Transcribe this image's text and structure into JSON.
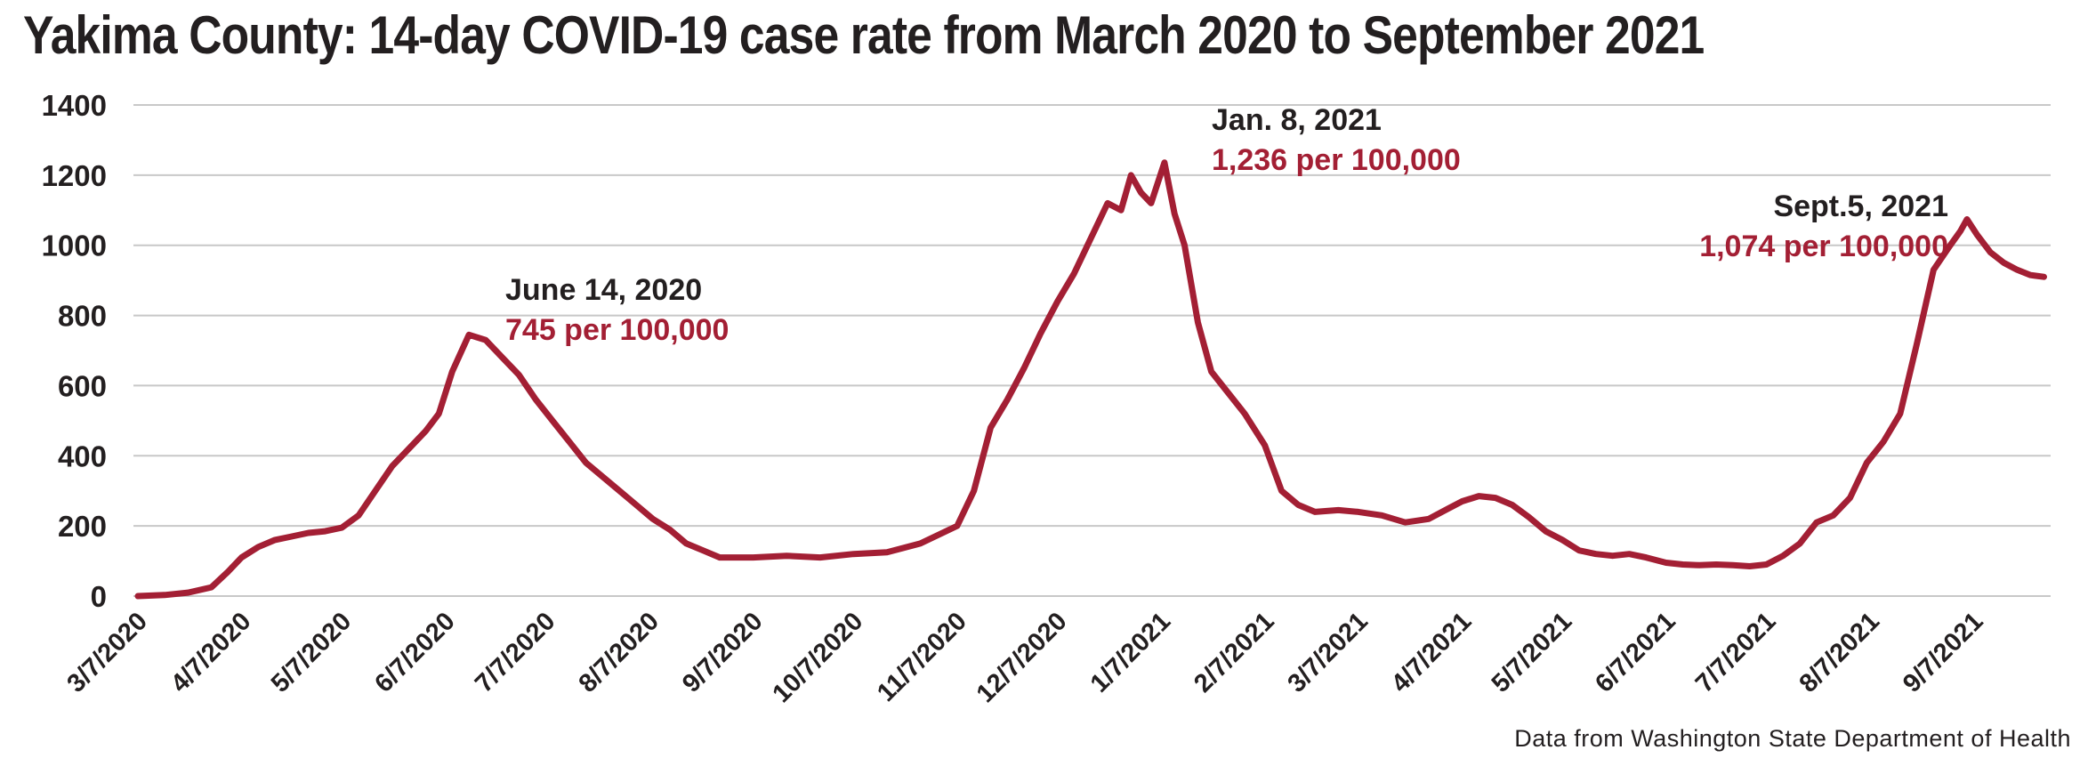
{
  "title": "Yakima County: 14-day COVID-19 case rate from March 2020 to September 2021",
  "source": "Data from Washington State Department of Health",
  "colors": {
    "line": "#a31f34",
    "text": "#231f20",
    "annotation_value": "#a31f34",
    "grid": "#c8c8c8"
  },
  "chart_data": {
    "type": "line",
    "title": "Yakima County: 14-day COVID-19 case rate from March 2020 to September 2021",
    "xlabel": "",
    "ylabel": "",
    "ylim": [
      0,
      1400
    ],
    "yticks": [
      0,
      200,
      400,
      600,
      800,
      1000,
      1200,
      1400
    ],
    "xlim": [
      "2020-03-07",
      "2021-09-30"
    ],
    "xtick_labels": [
      "3/7/2020",
      "4/7/2020",
      "5/7/2020",
      "6/7/2020",
      "7/7/2020",
      "8/7/2020",
      "9/7/2020",
      "10/7/2020",
      "11/7/2020",
      "12/7/2020",
      "1/7/2021",
      "2/7/2021",
      "3/7/2021",
      "4/7/2021",
      "5/7/2021",
      "6/7/2021",
      "7/7/2021",
      "8/7/2021",
      "9/7/2021"
    ],
    "grid": "horizontal",
    "series": [
      {
        "x": [
          "2020-03-07",
          "2020-03-15",
          "2020-03-22",
          "2020-03-29",
          "2020-04-03",
          "2020-04-07",
          "2020-04-12",
          "2020-04-17",
          "2020-04-22",
          "2020-04-27",
          "2020-05-02",
          "2020-05-07",
          "2020-05-12",
          "2020-05-17",
          "2020-05-22",
          "2020-05-27",
          "2020-06-01",
          "2020-06-05",
          "2020-06-09",
          "2020-06-14",
          "2020-06-19",
          "2020-06-24",
          "2020-06-29",
          "2020-07-04",
          "2020-07-09",
          "2020-07-14",
          "2020-07-19",
          "2020-07-24",
          "2020-07-29",
          "2020-08-03",
          "2020-08-08",
          "2020-08-13",
          "2020-08-18",
          "2020-08-23",
          "2020-08-28",
          "2020-09-02",
          "2020-09-07",
          "2020-09-17",
          "2020-09-27",
          "2020-10-07",
          "2020-10-17",
          "2020-10-27",
          "2020-11-07",
          "2020-11-12",
          "2020-11-17",
          "2020-11-22",
          "2020-11-27",
          "2020-12-02",
          "2020-12-07",
          "2020-12-12",
          "2020-12-17",
          "2020-12-22",
          "2020-12-26",
          "2020-12-29",
          "2021-01-01",
          "2021-01-04",
          "2021-01-08",
          "2021-01-11",
          "2021-01-14",
          "2021-01-18",
          "2021-01-22",
          "2021-01-27",
          "2021-02-01",
          "2021-02-07",
          "2021-02-12",
          "2021-02-17",
          "2021-02-22",
          "2021-03-01",
          "2021-03-07",
          "2021-03-14",
          "2021-03-21",
          "2021-03-28",
          "2021-04-03",
          "2021-04-07",
          "2021-04-12",
          "2021-04-17",
          "2021-04-22",
          "2021-04-27",
          "2021-05-02",
          "2021-05-07",
          "2021-05-12",
          "2021-05-17",
          "2021-05-22",
          "2021-05-27",
          "2021-06-01",
          "2021-06-07",
          "2021-06-12",
          "2021-06-17",
          "2021-06-22",
          "2021-06-27",
          "2021-07-02",
          "2021-07-07",
          "2021-07-12",
          "2021-07-17",
          "2021-07-22",
          "2021-07-27",
          "2021-08-01",
          "2021-08-06",
          "2021-08-11",
          "2021-08-16",
          "2021-08-21",
          "2021-08-26",
          "2021-08-31",
          "2021-09-03",
          "2021-09-05",
          "2021-09-08",
          "2021-09-12",
          "2021-09-16",
          "2021-09-20",
          "2021-09-24",
          "2021-09-28"
        ],
        "y": [
          0,
          3,
          10,
          25,
          70,
          110,
          140,
          160,
          170,
          180,
          185,
          195,
          230,
          300,
          370,
          420,
          470,
          520,
          640,
          745,
          730,
          680,
          630,
          560,
          500,
          440,
          380,
          340,
          300,
          260,
          220,
          190,
          150,
          130,
          110,
          110,
          110,
          115,
          110,
          120,
          125,
          150,
          200,
          300,
          480,
          560,
          650,
          750,
          840,
          920,
          1020,
          1120,
          1100,
          1200,
          1150,
          1120,
          1236,
          1090,
          1000,
          780,
          640,
          580,
          520,
          430,
          300,
          260,
          240,
          245,
          240,
          230,
          210,
          220,
          250,
          270,
          285,
          280,
          260,
          225,
          185,
          160,
          130,
          120,
          115,
          120,
          110,
          95,
          90,
          88,
          90,
          88,
          85,
          90,
          115,
          150,
          210,
          230,
          280,
          380,
          440,
          520,
          720,
          930,
          1000,
          1040,
          1074,
          1030,
          980,
          950,
          930,
          915,
          910
        ]
      }
    ],
    "annotations": [
      {
        "date": "June 14, 2020",
        "value": "745 per 100,000"
      },
      {
        "date": "Jan. 8, 2021",
        "value": "1,236 per 100,000"
      },
      {
        "date": "Sept.5, 2021",
        "value": "1,074 per 100,000"
      }
    ]
  }
}
